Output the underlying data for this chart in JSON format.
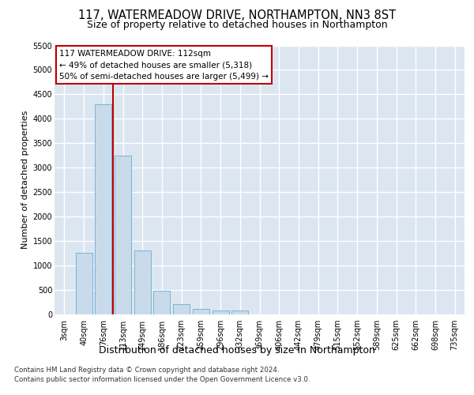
{
  "title": "117, WATERMEADOW DRIVE, NORTHAMPTON, NN3 8ST",
  "subtitle": "Size of property relative to detached houses in Northampton",
  "xlabel": "Distribution of detached houses by size in Northampton",
  "ylabel": "Number of detached properties",
  "categories": [
    "3sqm",
    "40sqm",
    "76sqm",
    "113sqm",
    "149sqm",
    "186sqm",
    "223sqm",
    "259sqm",
    "296sqm",
    "332sqm",
    "369sqm",
    "406sqm",
    "442sqm",
    "479sqm",
    "515sqm",
    "552sqm",
    "589sqm",
    "625sqm",
    "662sqm",
    "698sqm",
    "735sqm"
  ],
  "values": [
    0,
    1250,
    4300,
    3250,
    1300,
    475,
    200,
    100,
    75,
    75,
    0,
    0,
    0,
    0,
    0,
    0,
    0,
    0,
    0,
    0,
    0
  ],
  "bar_color": "#c9daea",
  "bar_edge_color": "#6aadd5",
  "vline_color": "#c00000",
  "vline_x_index": 3,
  "ylim_max": 5500,
  "yticks": [
    0,
    500,
    1000,
    1500,
    2000,
    2500,
    3000,
    3500,
    4000,
    4500,
    5000,
    5500
  ],
  "annotation_line1": "117 WATERMEADOW DRIVE: 112sqm",
  "annotation_line2": "← 49% of detached houses are smaller (5,318)",
  "annotation_line3": "50% of semi-detached houses are larger (5,499) →",
  "annotation_box_edgecolor": "#c00000",
  "footer_line1": "Contains HM Land Registry data © Crown copyright and database right 2024.",
  "footer_line2": "Contains public sector information licensed under the Open Government Licence v3.0.",
  "bg_color": "#dce6f1",
  "title_fontsize": 10.5,
  "subtitle_fontsize": 9,
  "xlabel_fontsize": 9,
  "ylabel_fontsize": 8,
  "tick_fontsize": 7,
  "annotation_fontsize": 7.5,
  "footer_fontsize": 6.2
}
